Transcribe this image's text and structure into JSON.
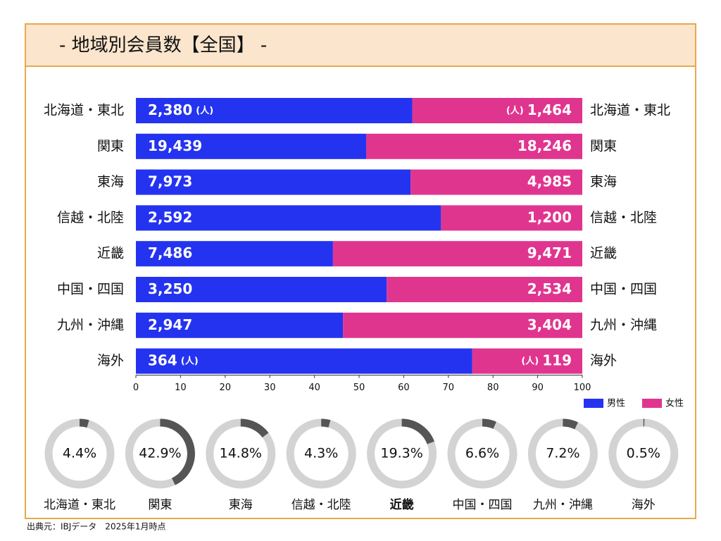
{
  "title": "- 地域別会員数【全国】 -",
  "chart_data": [
    {
      "type": "stacked_bar_percent",
      "categories": [
        "北海道・東北",
        "関東",
        "東海",
        "信越・北陸",
        "近畿",
        "中国・四国",
        "九州・沖縄",
        "海外"
      ],
      "series": [
        {
          "name": "男性",
          "color": "#2433f0",
          "values": [
            2380,
            19439,
            7973,
            2592,
            7486,
            3250,
            2947,
            364
          ],
          "value_labels": [
            "2,380",
            "19,439",
            "7,973",
            "2,592",
            "7,486",
            "3,250",
            "2,947",
            "364"
          ]
        },
        {
          "name": "女性",
          "color": "#e0358f",
          "values": [
            1464,
            18246,
            4985,
            1200,
            9471,
            2534,
            3404,
            119
          ],
          "value_labels": [
            "1,464",
            "18,246",
            "4,985",
            "1,200",
            "9,471",
            "2,534",
            "3,404",
            "119"
          ]
        }
      ],
      "unit_label": "(人)",
      "unit_rows": [
        0,
        7
      ],
      "xlim": [
        0,
        100
      ],
      "xticks": [
        0,
        10,
        20,
        30,
        40,
        50,
        60,
        70,
        80,
        90,
        100
      ],
      "legend": "bottom-right"
    },
    {
      "type": "donut",
      "categories": [
        "北海道・東北",
        "関東",
        "東海",
        "信越・北陸",
        "近畿",
        "中国・四国",
        "九州・沖縄",
        "海外"
      ],
      "values": [
        4.4,
        42.9,
        14.8,
        4.3,
        19.3,
        6.6,
        7.2,
        0.5
      ],
      "value_labels": [
        "4.4%",
        "42.9%",
        "14.8%",
        "4.3%",
        "19.3%",
        "6.6%",
        "7.2%",
        "0.5%"
      ],
      "color": "#555555",
      "track_color": "#d3d3d3",
      "highlight": 4,
      "highlight_color": "#c0392b"
    }
  ],
  "source": "出典元：IBJデータ　2025年1月時点"
}
